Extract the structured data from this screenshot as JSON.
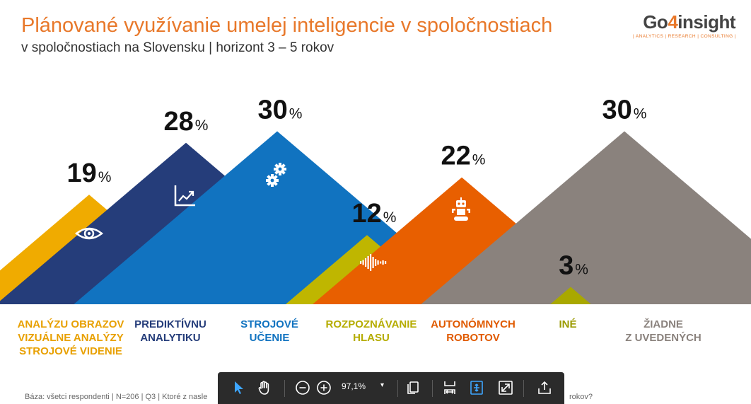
{
  "header": {
    "title": "Plánované využívanie umelej inteligencie v spoločnostiach",
    "subtitle": "v spoločnostiach na Slovensku | horizont 3 – 5 rokov"
  },
  "logo": {
    "prefix": "Go",
    "four": "4",
    "suffix": "insight",
    "tagline": "| ANALYTICS | RESEARCH | CONSULTING |"
  },
  "chart_data": {
    "type": "bar",
    "style": "triangle-peaks",
    "unit": "%",
    "categories": [
      "ANALÝZU OBRAZOV VIZUÁLNE ANALÝZY STROJOVÉ VIDENIE",
      "PREDIKTÍVNU ANALYTIKU",
      "STROJOVÉ UČENIE",
      "ROZPOZNÁVANIE HLASU",
      "AUTONÓMNYCH ROBOTOV",
      "INÉ",
      "ŽIADNE Z UVEDENÝCH"
    ],
    "values": [
      19,
      28,
      30,
      12,
      22,
      3,
      30
    ],
    "items": [
      {
        "value": "19",
        "label_lines": [
          "ANALÝZU OBRAZOV",
          "VIZUÁLNE ANALÝZY",
          "STROJOVÉ VIDENIE"
        ],
        "color": "#f0ab00",
        "icon": "eye-icon"
      },
      {
        "value": "28",
        "label_lines": [
          "PREDIKTÍVNU",
          "ANALYTIKU"
        ],
        "color": "#253d7a",
        "icon": "trend-chart-icon"
      },
      {
        "value": "30",
        "label_lines": [
          "STROJOVÉ",
          "UČENIE"
        ],
        "color": "#1173c0",
        "icon": "gears-icon"
      },
      {
        "value": "12",
        "label_lines": [
          "ROZPOZNÁVANIE",
          "HLASU"
        ],
        "color": "#bfb600",
        "icon": "soundwave-icon"
      },
      {
        "value": "22",
        "label_lines": [
          "AUTONÓMNYCH",
          "ROBOTOV"
        ],
        "color": "#e85f00",
        "icon": "robot-icon"
      },
      {
        "value": "3",
        "label_lines": [
          "INÉ"
        ],
        "color": "#a9a800",
        "icon": ""
      },
      {
        "value": "30",
        "label_lines": [
          "ŽIADNE",
          "Z UVEDENÝCH"
        ],
        "color": "#8a827d",
        "icon": ""
      }
    ],
    "label_colors": [
      "#e8a000",
      "#253d7a",
      "#1173c0",
      "#b5ac00",
      "#e05a00",
      "#9a9a00",
      "#8a827d"
    ],
    "ylim": [
      0,
      30
    ],
    "grid": false,
    "legend": "none"
  },
  "footnote": {
    "start": "Báza: všetci respondenti | N=206 | Q3 | Ktoré z nasle",
    "end": "rokov?"
  },
  "toolbar": {
    "zoom": "97,1%",
    "caret": "▾",
    "buttons": [
      "select-tool",
      "hand-tool",
      "zoom-out",
      "zoom-in",
      "copy-pages",
      "fit-width",
      "fit-page",
      "fullscreen",
      "share"
    ]
  }
}
